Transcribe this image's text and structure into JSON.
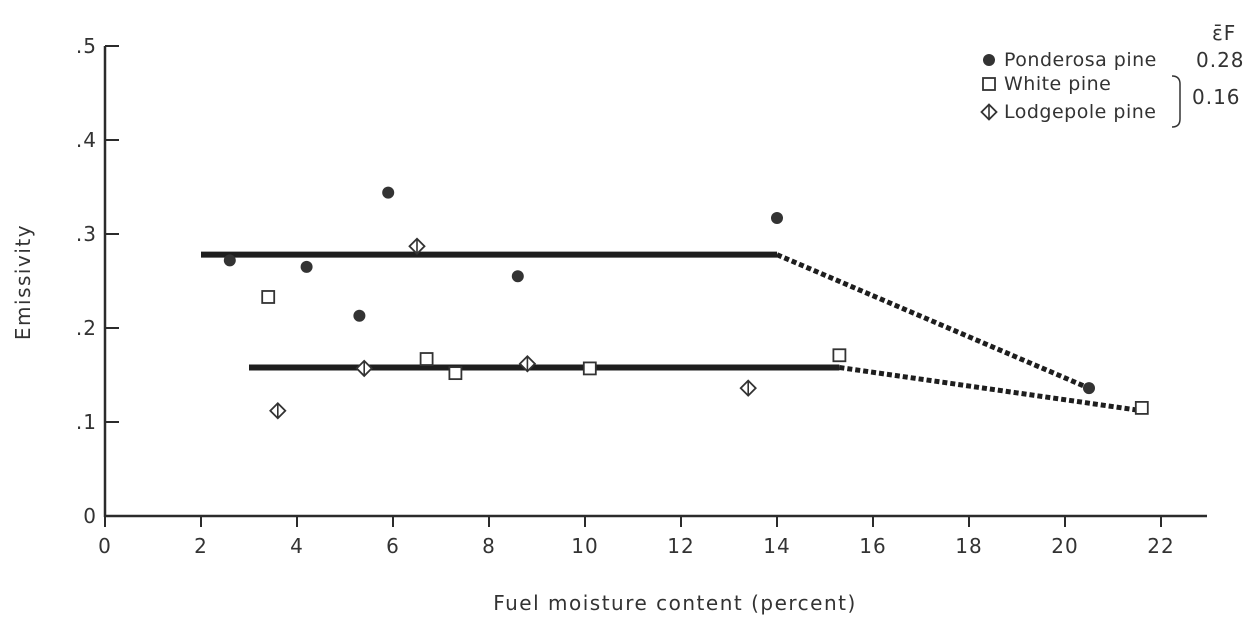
{
  "chart_data": {
    "type": "scatter",
    "xlabel": "Fuel moisture content (percent)",
    "ylabel": "Emissivity",
    "xlim": [
      0,
      23
    ],
    "ylim": [
      0,
      0.5
    ],
    "x_ticks": [
      0,
      2,
      4,
      6,
      8,
      10,
      12,
      14,
      16,
      18,
      20,
      22
    ],
    "x_tick_labels": [
      "0",
      "2",
      "4",
      "6",
      "8",
      "10",
      "12",
      "14",
      "16",
      "18",
      "20",
      "22"
    ],
    "y_ticks": [
      0,
      0.1,
      0.2,
      0.3,
      0.4,
      0.5
    ],
    "y_tick_labels": [
      "0",
      ".1",
      ".2",
      ".3",
      ".4",
      ".5"
    ],
    "legend_header": "ε̄F",
    "legend_position": "top-right",
    "series": [
      {
        "name": "Ponderosa pine",
        "marker": "filled-circle",
        "points": [
          [
            2.6,
            0.272
          ],
          [
            4.2,
            0.265
          ],
          [
            5.3,
            0.213
          ],
          [
            5.9,
            0.344
          ],
          [
            8.6,
            0.255
          ],
          [
            14.0,
            0.317
          ],
          [
            20.5,
            0.136
          ]
        ]
      },
      {
        "name": "White pine",
        "marker": "open-square",
        "points": [
          [
            3.4,
            0.233
          ],
          [
            6.7,
            0.167
          ],
          [
            7.3,
            0.152
          ],
          [
            10.1,
            0.157
          ],
          [
            15.3,
            0.171
          ],
          [
            21.6,
            0.115
          ]
        ]
      },
      {
        "name": "Lodgepole pine",
        "marker": "open-diamond",
        "points": [
          [
            3.6,
            0.112
          ],
          [
            5.4,
            0.157
          ],
          [
            6.5,
            0.287
          ],
          [
            8.8,
            0.162
          ],
          [
            13.4,
            0.136
          ]
        ]
      }
    ],
    "fit_lines": [
      {
        "group": "Ponderosa pine",
        "value_label": "0.28",
        "solid": [
          [
            2.0,
            0.278
          ],
          [
            14.0,
            0.278
          ]
        ],
        "dashed": [
          [
            14.0,
            0.278
          ],
          [
            20.5,
            0.136
          ]
        ]
      },
      {
        "group": "White pine + Lodgepole pine",
        "value_label": "0.16",
        "solid": [
          [
            3.0,
            0.158
          ],
          [
            15.3,
            0.158
          ]
        ],
        "dashed": [
          [
            15.3,
            0.158
          ],
          [
            21.6,
            0.112
          ]
        ]
      }
    ]
  }
}
